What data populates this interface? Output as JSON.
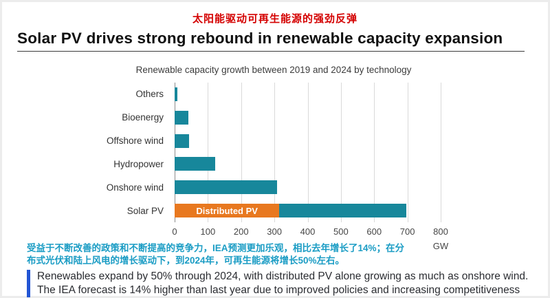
{
  "header": {
    "chinese_subtitle": "太阳能驱动可再生能源的强劲反弹",
    "title": "Solar PV drives strong rebound in renewable capacity expansion"
  },
  "chart_data": {
    "type": "bar",
    "orientation": "horizontal",
    "title": "Renewable capacity growth between 2019 and 2024 by technology",
    "categories": [
      "Others",
      "Bioenergy",
      "Offshore wind",
      "Hydropower",
      "Onshore wind",
      "Solar PV"
    ],
    "values": [
      9,
      41,
      44,
      121,
      309,
      697
    ],
    "stacked_category": "Solar PV",
    "segments": {
      "distributed_pv": 315,
      "remaining_solar_pv": 382
    },
    "segment_label": "Distributed PV",
    "x_ticks": [
      0,
      100,
      200,
      300,
      400,
      500,
      600,
      700,
      800
    ],
    "xlim": [
      0,
      800
    ],
    "xlabel": "GW",
    "grid": "vertical-only",
    "legend": "none",
    "bar_color": "#17879b",
    "distributed_color": "#e8781f"
  },
  "notes": {
    "chinese_note": "受益于不断改善的政策和不断提高的竞争力，IEA预测更加乐观，相比去年增长了14%；在分布式光伏和陆上风电的增长驱动下，到2024年，可再生能源将增长50%左右。",
    "english_line1": "Renewables expand by 50% through 2024, with distributed PV alone growing as much as onshore wind.",
    "english_line2": "The IEA forecast is 14% higher than last year due to improved policies and increasing competitiveness"
  },
  "colors": {
    "chinese_title_red": "#d40000",
    "chinese_note_blue": "#1a9cc4",
    "english_accent_blue": "#2255d4"
  }
}
